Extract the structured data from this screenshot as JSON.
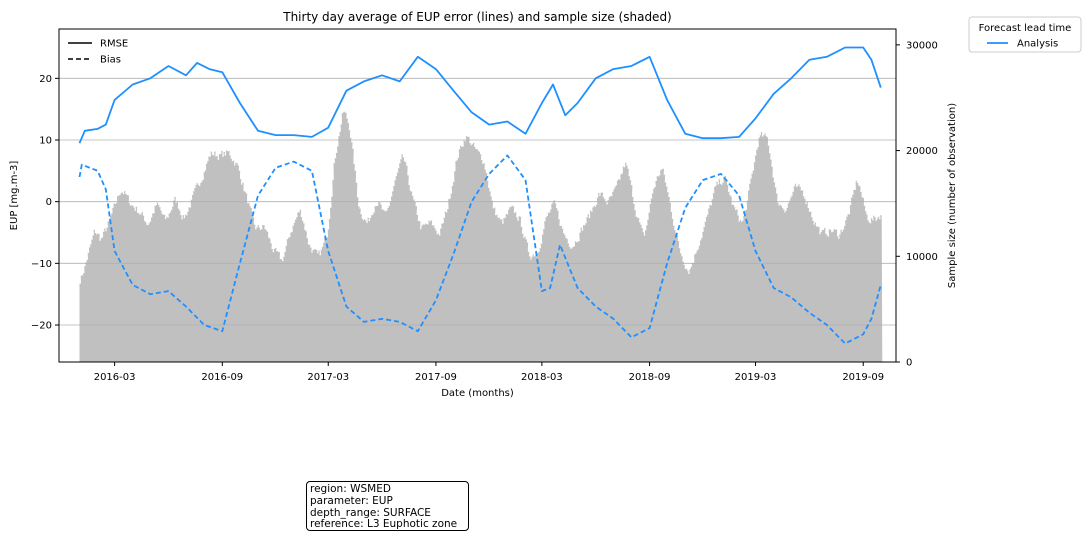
{
  "chart_data": {
    "type": "line",
    "title": "Thirty day average of EUP error (lines) and sample size (shaded)",
    "xlabel": "Date (months)",
    "ylabel": "EUP [mg.m-3]",
    "y2label": "Sample size (number of observation)",
    "x_ticks": [
      "2016-03",
      "2016-09",
      "2017-03",
      "2017-09",
      "2018-03",
      "2018-09",
      "2019-03",
      "2019-09"
    ],
    "x_range": [
      "2015-11-27",
      "2019-10-27"
    ],
    "ylim": [
      -26,
      28
    ],
    "y_ticks": [
      -20,
      -10,
      0,
      10,
      20
    ],
    "y2lim": [
      0,
      31500
    ],
    "y2_ticks": [
      0,
      10000,
      20000,
      30000
    ],
    "grid": "horizontal",
    "style_legend": {
      "entries": [
        {
          "label": "RMSE",
          "style": "solid"
        },
        {
          "label": "Bias",
          "style": "dashed"
        }
      ],
      "placement": "top-left"
    },
    "lead_legend": {
      "title": "Forecast lead time",
      "entries": [
        {
          "label": "Analysis",
          "color": "#1e90ff"
        }
      ],
      "placement": "outside-top-right"
    },
    "series": [
      {
        "name": "Analysis",
        "metric": "RMSE",
        "color": "#1e90ff",
        "points": [
          [
            "2016-01-01",
            9.5
          ],
          [
            "2016-01-10",
            11.5
          ],
          [
            "2016-02-01",
            11.8
          ],
          [
            "2016-02-15",
            12.5
          ],
          [
            "2016-03-01",
            16.5
          ],
          [
            "2016-04-01",
            19.0
          ],
          [
            "2016-05-01",
            20.0
          ],
          [
            "2016-06-01",
            22.0
          ],
          [
            "2016-07-01",
            20.5
          ],
          [
            "2016-07-20",
            22.5
          ],
          [
            "2016-08-10",
            21.5
          ],
          [
            "2016-09-01",
            21.0
          ],
          [
            "2016-10-01",
            16.0
          ],
          [
            "2016-11-01",
            11.5
          ],
          [
            "2016-12-01",
            10.8
          ],
          [
            "2017-01-01",
            10.8
          ],
          [
            "2017-02-01",
            10.5
          ],
          [
            "2017-03-01",
            12.0
          ],
          [
            "2017-04-01",
            18.0
          ],
          [
            "2017-05-01",
            19.5
          ],
          [
            "2017-06-01",
            20.5
          ],
          [
            "2017-07-01",
            19.5
          ],
          [
            "2017-08-01",
            23.5
          ],
          [
            "2017-09-01",
            21.5
          ],
          [
            "2017-10-01",
            18.0
          ],
          [
            "2017-11-01",
            14.5
          ],
          [
            "2017-12-01",
            12.5
          ],
          [
            "2018-01-01",
            13.0
          ],
          [
            "2018-02-01",
            11.0
          ],
          [
            "2018-03-01",
            16.0
          ],
          [
            "2018-03-20",
            19.0
          ],
          [
            "2018-04-10",
            14.0
          ],
          [
            "2018-05-01",
            16.0
          ],
          [
            "2018-06-01",
            20.0
          ],
          [
            "2018-07-01",
            21.5
          ],
          [
            "2018-08-01",
            22.0
          ],
          [
            "2018-09-01",
            23.5
          ],
          [
            "2018-10-01",
            16.5
          ],
          [
            "2018-11-01",
            11.0
          ],
          [
            "2018-12-01",
            10.3
          ],
          [
            "2019-01-01",
            10.3
          ],
          [
            "2019-02-01",
            10.5
          ],
          [
            "2019-03-01",
            13.5
          ],
          [
            "2019-04-01",
            17.5
          ],
          [
            "2019-05-01",
            20.0
          ],
          [
            "2019-06-01",
            23.0
          ],
          [
            "2019-07-01",
            23.5
          ],
          [
            "2019-08-01",
            25.0
          ],
          [
            "2019-09-01",
            25.0
          ],
          [
            "2019-09-15",
            23.0
          ],
          [
            "2019-10-01",
            18.5
          ]
        ]
      },
      {
        "name": "Analysis",
        "metric": "Bias",
        "color": "#1e90ff",
        "points": [
          [
            "2016-01-01",
            4.0
          ],
          [
            "2016-01-05",
            6.0
          ],
          [
            "2016-02-01",
            5.0
          ],
          [
            "2016-02-15",
            2.0
          ],
          [
            "2016-03-01",
            -8.0
          ],
          [
            "2016-04-01",
            -13.5
          ],
          [
            "2016-05-01",
            -15.0
          ],
          [
            "2016-06-01",
            -14.5
          ],
          [
            "2016-07-01",
            -17.0
          ],
          [
            "2016-08-01",
            -20.0
          ],
          [
            "2016-09-01",
            -21.0
          ],
          [
            "2016-10-01",
            -10.0
          ],
          [
            "2016-11-01",
            1.0
          ],
          [
            "2016-12-01",
            5.5
          ],
          [
            "2017-01-01",
            6.5
          ],
          [
            "2017-02-01",
            5.0
          ],
          [
            "2017-03-01",
            -8.0
          ],
          [
            "2017-04-01",
            -17.0
          ],
          [
            "2017-05-01",
            -19.5
          ],
          [
            "2017-06-01",
            -19.0
          ],
          [
            "2017-07-01",
            -19.5
          ],
          [
            "2017-08-01",
            -21.0
          ],
          [
            "2017-09-01",
            -16.0
          ],
          [
            "2017-10-01",
            -8.5
          ],
          [
            "2017-11-01",
            0.0
          ],
          [
            "2017-12-01",
            4.5
          ],
          [
            "2018-01-01",
            7.5
          ],
          [
            "2018-02-01",
            3.5
          ],
          [
            "2018-03-01",
            -14.5
          ],
          [
            "2018-03-15",
            -14.0
          ],
          [
            "2018-04-01",
            -7.0
          ],
          [
            "2018-05-01",
            -14.0
          ],
          [
            "2018-06-01",
            -17.0
          ],
          [
            "2018-07-01",
            -19.0
          ],
          [
            "2018-08-01",
            -22.0
          ],
          [
            "2018-09-01",
            -20.5
          ],
          [
            "2018-10-01",
            -10.0
          ],
          [
            "2018-11-01",
            -1.0
          ],
          [
            "2018-12-01",
            3.5
          ],
          [
            "2019-01-01",
            4.5
          ],
          [
            "2019-02-01",
            1.0
          ],
          [
            "2019-03-01",
            -8.0
          ],
          [
            "2019-04-01",
            -14.0
          ],
          [
            "2019-05-01",
            -15.5
          ],
          [
            "2019-06-01",
            -18.0
          ],
          [
            "2019-07-01",
            -20.0
          ],
          [
            "2019-08-01",
            -23.0
          ],
          [
            "2019-09-01",
            -21.5
          ],
          [
            "2019-09-15",
            -19.0
          ],
          [
            "2019-10-01",
            -13.5
          ]
        ]
      }
    ],
    "sample_size": {
      "color": "#c0c0c0",
      "points": [
        [
          "2016-01-01",
          7800
        ],
        [
          "2016-01-10",
          9500
        ],
        [
          "2016-01-25",
          12500
        ],
        [
          "2016-02-05",
          11500
        ],
        [
          "2016-02-20",
          13500
        ],
        [
          "2016-03-10",
          16500
        ],
        [
          "2016-03-25",
          15000
        ],
        [
          "2016-04-10",
          14200
        ],
        [
          "2016-04-25",
          13000
        ],
        [
          "2016-05-10",
          15000
        ],
        [
          "2016-05-25",
          13200
        ],
        [
          "2016-06-10",
          15500
        ],
        [
          "2016-06-25",
          13500
        ],
        [
          "2016-07-10",
          15500
        ],
        [
          "2016-07-25",
          17500
        ],
        [
          "2016-08-10",
          19800
        ],
        [
          "2016-08-25",
          19500
        ],
        [
          "2016-09-10",
          19800
        ],
        [
          "2016-09-25",
          18500
        ],
        [
          "2016-10-10",
          15500
        ],
        [
          "2016-10-25",
          12500
        ],
        [
          "2016-11-10",
          12800
        ],
        [
          "2016-11-25",
          10500
        ],
        [
          "2016-12-10",
          9500
        ],
        [
          "2016-12-25",
          12500
        ],
        [
          "2017-01-10",
          14500
        ],
        [
          "2017-01-25",
          11000
        ],
        [
          "2017-02-10",
          9800
        ],
        [
          "2017-02-25",
          12000
        ],
        [
          "2017-03-10",
          19500
        ],
        [
          "2017-03-25",
          24000
        ],
        [
          "2017-04-05",
          22000
        ],
        [
          "2017-04-20",
          14500
        ],
        [
          "2017-05-05",
          13000
        ],
        [
          "2017-05-20",
          15500
        ],
        [
          "2017-06-05",
          13500
        ],
        [
          "2017-06-20",
          17000
        ],
        [
          "2017-07-05",
          19500
        ],
        [
          "2017-07-20",
          15500
        ],
        [
          "2017-08-05",
          12500
        ],
        [
          "2017-08-20",
          13200
        ],
        [
          "2017-09-05",
          12000
        ],
        [
          "2017-09-20",
          15000
        ],
        [
          "2017-10-05",
          19500
        ],
        [
          "2017-10-20",
          21500
        ],
        [
          "2017-11-05",
          20000
        ],
        [
          "2017-11-20",
          19000
        ],
        [
          "2017-12-05",
          14500
        ],
        [
          "2017-12-20",
          13000
        ],
        [
          "2018-01-05",
          14500
        ],
        [
          "2018-01-20",
          13500
        ],
        [
          "2018-02-05",
          10000
        ],
        [
          "2018-02-20",
          10500
        ],
        [
          "2018-03-05",
          13500
        ],
        [
          "2018-03-20",
          15000
        ],
        [
          "2018-04-05",
          12000
        ],
        [
          "2018-04-20",
          11000
        ],
        [
          "2018-05-05",
          12500
        ],
        [
          "2018-05-20",
          14000
        ],
        [
          "2018-06-05",
          16000
        ],
        [
          "2018-06-20",
          15000
        ],
        [
          "2018-07-05",
          16500
        ],
        [
          "2018-07-20",
          19000
        ],
        [
          "2018-08-05",
          14500
        ],
        [
          "2018-08-20",
          11500
        ],
        [
          "2018-09-05",
          16500
        ],
        [
          "2018-09-20",
          18500
        ],
        [
          "2018-10-05",
          14500
        ],
        [
          "2018-10-20",
          10500
        ],
        [
          "2018-11-05",
          8500
        ],
        [
          "2018-11-20",
          11000
        ],
        [
          "2018-12-05",
          13500
        ],
        [
          "2018-12-20",
          16500
        ],
        [
          "2019-01-05",
          17500
        ],
        [
          "2019-01-20",
          14500
        ],
        [
          "2019-02-05",
          13000
        ],
        [
          "2019-02-20",
          17500
        ],
        [
          "2019-03-05",
          21500
        ],
        [
          "2019-03-20",
          21000
        ],
        [
          "2019-04-05",
          15000
        ],
        [
          "2019-04-20",
          14500
        ],
        [
          "2019-05-05",
          16500
        ],
        [
          "2019-05-20",
          16000
        ],
        [
          "2019-06-05",
          13500
        ],
        [
          "2019-06-20",
          12000
        ],
        [
          "2019-07-05",
          12500
        ],
        [
          "2019-07-20",
          12000
        ],
        [
          "2019-08-05",
          14000
        ],
        [
          "2019-08-20",
          17500
        ],
        [
          "2019-09-05",
          13500
        ],
        [
          "2019-09-20",
          13500
        ],
        [
          "2019-10-01",
          14200
        ]
      ]
    }
  },
  "info_box": {
    "lines": [
      "region: WSMED",
      "parameter: EUP",
      "depth_range: SURFACE",
      "reference: L3 Euphotic zone"
    ]
  }
}
